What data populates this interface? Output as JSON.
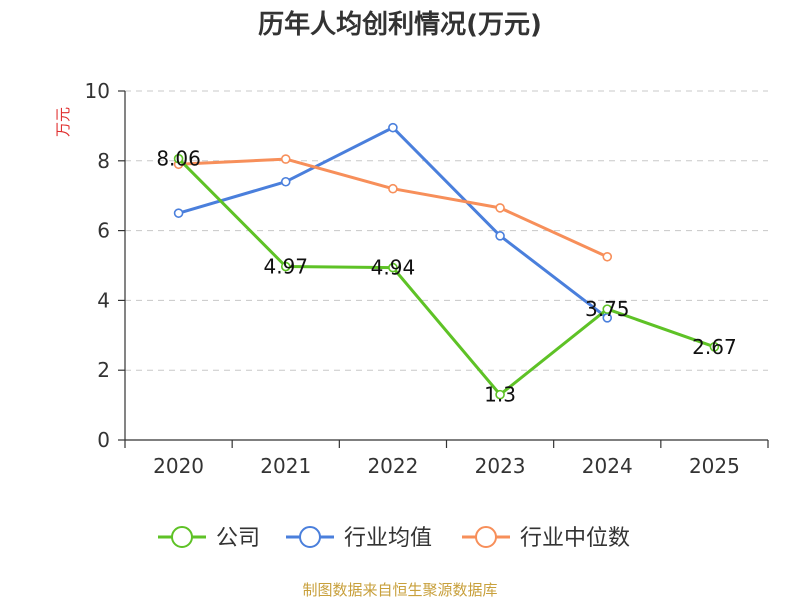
{
  "chart_data": {
    "type": "line",
    "title": "历年人均创利情况(万元)",
    "ylabel": "万元",
    "xlabel": "",
    "categories": [
      "2020",
      "2021",
      "2022",
      "2023",
      "2024",
      "2025"
    ],
    "ylim": [
      0,
      10
    ],
    "yticks": [
      0,
      2,
      4,
      6,
      8,
      10
    ],
    "grid": true,
    "legend_position": "bottom",
    "series": [
      {
        "name": "公司",
        "color": "#5ec226",
        "values": [
          8.06,
          4.97,
          4.94,
          1.3,
          3.75,
          2.67
        ],
        "labels": [
          "8.06",
          "4.97",
          "4.94",
          "1.3",
          "3.75",
          "2.67"
        ]
      },
      {
        "name": "行业均值",
        "color": "#4a7fdc",
        "values": [
          6.5,
          7.4,
          8.95,
          5.85,
          3.5,
          null
        ]
      },
      {
        "name": "行业中位数",
        "color": "#f78f5a",
        "values": [
          7.9,
          8.05,
          7.2,
          6.65,
          5.25,
          null
        ]
      }
    ]
  },
  "source_text": "制图数据来自恒生聚源数据库"
}
